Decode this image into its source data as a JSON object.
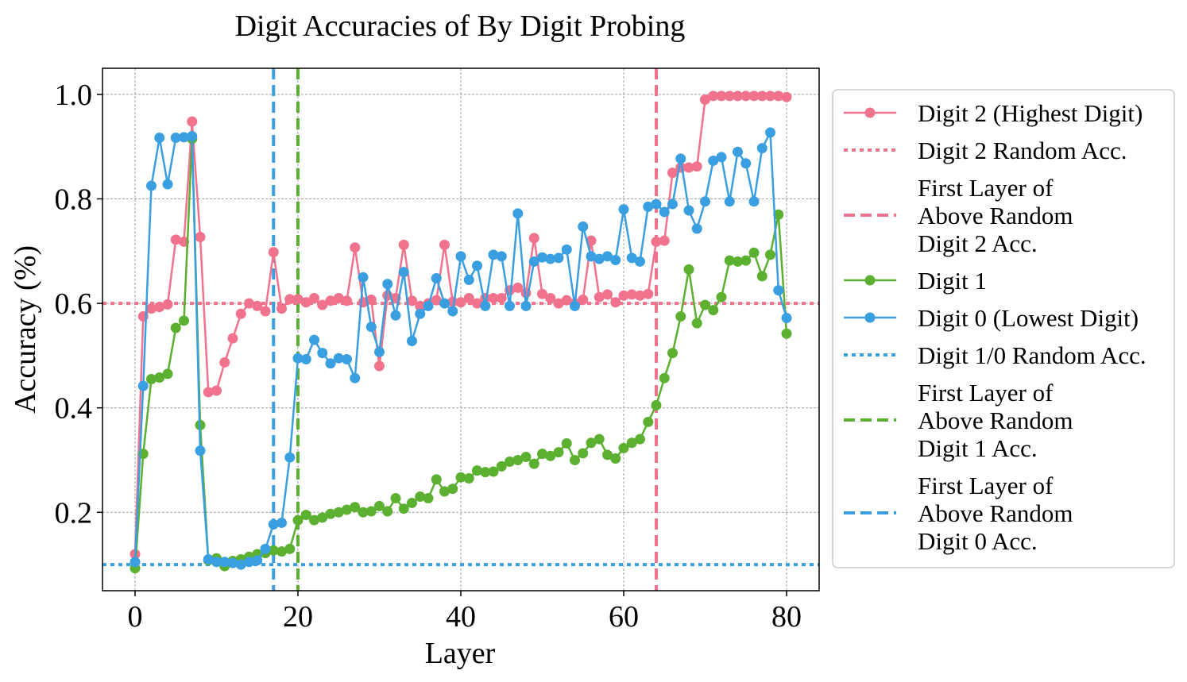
{
  "chart_data": {
    "type": "line",
    "title": "Digit Accuracies of By Digit Probing",
    "xlabel": "Layer",
    "ylabel": "Accuracy (%)",
    "xlim": [
      -4,
      84
    ],
    "ylim": [
      0.05,
      1.05
    ],
    "xticks": [
      0,
      20,
      40,
      60,
      80
    ],
    "yticks": [
      0.2,
      0.4,
      0.6,
      0.8,
      1.0
    ],
    "xtick_labels": [
      "0",
      "20",
      "40",
      "60",
      "80"
    ],
    "ytick_labels": [
      "0.2",
      "0.4",
      "0.6",
      "0.8",
      "1.0"
    ],
    "grid": true,
    "legend_position": "outside-right",
    "series": [
      {
        "name": "Digit 2 (Highest Digit)",
        "color": "#f0728c",
        "values": [
          0.12,
          0.575,
          0.59,
          0.593,
          0.598,
          0.722,
          0.718,
          0.948,
          0.727,
          0.43,
          0.433,
          0.487,
          0.533,
          0.58,
          0.6,
          0.595,
          0.585,
          0.698,
          0.59,
          0.608,
          0.608,
          0.602,
          0.61,
          0.597,
          0.605,
          0.61,
          0.605,
          0.707,
          0.602,
          0.607,
          0.48,
          0.615,
          0.61,
          0.712,
          0.605,
          0.595,
          0.6,
          0.606,
          0.712,
          0.603,
          0.602,
          0.61,
          0.6,
          0.61,
          0.61,
          0.61,
          0.625,
          0.63,
          0.62,
          0.725,
          0.618,
          0.61,
          0.6,
          0.606,
          0.6,
          0.607,
          0.72,
          0.612,
          0.617,
          0.602,
          0.615,
          0.617,
          0.615,
          0.618,
          0.718,
          0.72,
          0.85,
          0.86,
          0.86,
          0.862,
          0.99,
          0.997,
          0.997,
          0.997,
          0.997,
          0.997,
          0.997,
          0.997,
          0.997,
          0.997,
          0.995
        ]
      },
      {
        "name": "Digit 1",
        "color": "#5bb030",
        "values": [
          0.093,
          0.312,
          0.455,
          0.458,
          0.465,
          0.553,
          0.567,
          0.915,
          0.367,
          0.108,
          0.112,
          0.097,
          0.107,
          0.11,
          0.115,
          0.12,
          0.122,
          0.127,
          0.125,
          0.13,
          0.185,
          0.195,
          0.185,
          0.19,
          0.197,
          0.2,
          0.205,
          0.21,
          0.2,
          0.202,
          0.212,
          0.202,
          0.227,
          0.207,
          0.218,
          0.23,
          0.227,
          0.263,
          0.24,
          0.245,
          0.267,
          0.265,
          0.28,
          0.277,
          0.278,
          0.288,
          0.297,
          0.3,
          0.306,
          0.293,
          0.312,
          0.308,
          0.315,
          0.332,
          0.3,
          0.313,
          0.333,
          0.34,
          0.31,
          0.303,
          0.323,
          0.333,
          0.34,
          0.373,
          0.405,
          0.457,
          0.505,
          0.575,
          0.665,
          0.562,
          0.597,
          0.587,
          0.612,
          0.682,
          0.68,
          0.682,
          0.697,
          0.652,
          0.693,
          0.77,
          0.542
        ]
      },
      {
        "name": "Digit 0 (Lowest Digit)",
        "color": "#3a9fe0",
        "values": [
          0.105,
          0.442,
          0.825,
          0.917,
          0.828,
          0.917,
          0.918,
          0.92,
          0.318,
          0.11,
          0.105,
          0.105,
          0.103,
          0.1,
          0.105,
          0.108,
          0.13,
          0.177,
          0.18,
          0.305,
          0.495,
          0.493,
          0.53,
          0.505,
          0.485,
          0.495,
          0.493,
          0.457,
          0.65,
          0.555,
          0.507,
          0.637,
          0.577,
          0.66,
          0.528,
          0.58,
          0.595,
          0.648,
          0.6,
          0.585,
          0.69,
          0.645,
          0.672,
          0.595,
          0.693,
          0.69,
          0.595,
          0.772,
          0.595,
          0.68,
          0.688,
          0.685,
          0.687,
          0.703,
          0.595,
          0.747,
          0.69,
          0.685,
          0.69,
          0.683,
          0.78,
          0.687,
          0.68,
          0.785,
          0.79,
          0.775,
          0.79,
          0.877,
          0.778,
          0.743,
          0.795,
          0.873,
          0.88,
          0.795,
          0.89,
          0.868,
          0.795,
          0.897,
          0.927,
          0.625,
          0.572
        ]
      }
    ],
    "reference_lines": [
      {
        "name": "Digit 2 Random Acc.",
        "orientation": "horizontal",
        "value": 0.6,
        "style": "dotted",
        "color": "#f0728c"
      },
      {
        "name": "First Layer of Above Random Digit 2 Acc.",
        "orientation": "vertical",
        "value": 64,
        "style": "dashed",
        "color": "#f0728c"
      },
      {
        "name": "Digit 1/0 Random Acc.",
        "orientation": "horizontal",
        "value": 0.1,
        "style": "dotted",
        "color": "#3a9fe0"
      },
      {
        "name": "First Layer of Above Random Digit 1 Acc.",
        "orientation": "vertical",
        "value": 20,
        "style": "dashed",
        "color": "#5bb030"
      },
      {
        "name": "First Layer of Above Random Digit 0 Acc.",
        "orientation": "vertical",
        "value": 17,
        "style": "dashed",
        "color": "#3a9fe0"
      }
    ],
    "legend": [
      {
        "lines": [
          "Digit 2 (Highest Digit)"
        ],
        "color": "#f0728c",
        "kind": "marker-line"
      },
      {
        "lines": [
          "Digit 2 Random Acc."
        ],
        "color": "#f0728c",
        "kind": "dotted"
      },
      {
        "lines": [
          "First Layer of",
          "Above Random",
          "Digit 2 Acc."
        ],
        "color": "#f0728c",
        "kind": "dashed"
      },
      {
        "lines": [
          "Digit 1"
        ],
        "color": "#5bb030",
        "kind": "marker-line"
      },
      {
        "lines": [
          "Digit 0 (Lowest Digit)"
        ],
        "color": "#3a9fe0",
        "kind": "marker-line"
      },
      {
        "lines": [
          "Digit 1/0 Random Acc."
        ],
        "color": "#3a9fe0",
        "kind": "dotted"
      },
      {
        "lines": [
          "First Layer of",
          "Above Random",
          "Digit 1 Acc."
        ],
        "color": "#5bb030",
        "kind": "dashed"
      },
      {
        "lines": [
          "First Layer of",
          "Above Random",
          "Digit 0 Acc."
        ],
        "color": "#3a9fe0",
        "kind": "dashed"
      }
    ]
  }
}
